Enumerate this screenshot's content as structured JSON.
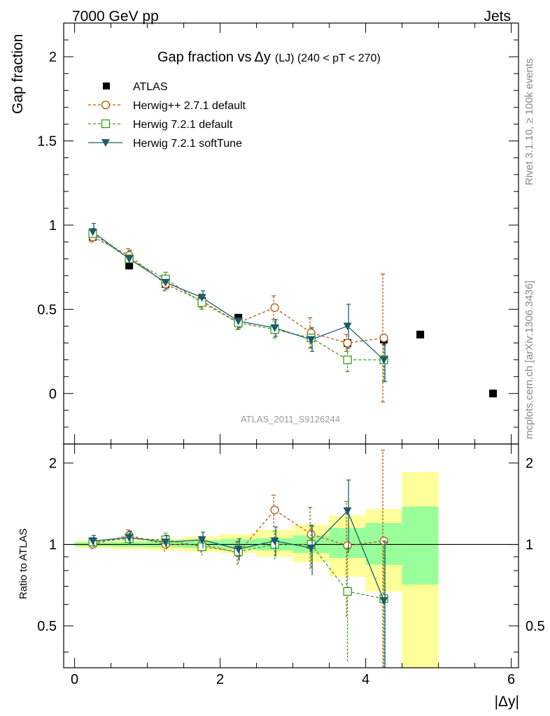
{
  "header": {
    "left": "7000 GeV pp",
    "right": "Jets"
  },
  "title": {
    "prefix": "Gap fraction vs",
    "delta_y": "Δy",
    "suffix": "(LJ) (240 < pT < 270)"
  },
  "side_labels": {
    "top": "Rivet 3.1.10, ≥ 100k events",
    "bottom": "mcplots.cern.ch [arXiv:1306.3436]"
  },
  "analysis_id": "ATLAS_2011_S9126244",
  "colors": {
    "atlas": "#000000",
    "herwigpp": "#b5580e",
    "herwig_default": "#3a9a1a",
    "herwig_soft": "#1c5b6e",
    "band_yellow": "#ffff99",
    "band_green": "#99ff99"
  },
  "chart_data": [
    {
      "type": "scatter",
      "panel": "main",
      "ylabel": "Gap fraction",
      "xlabel": "|Δy|",
      "xlim": [
        -0.15,
        6.1
      ],
      "ylim": [
        -0.3,
        2.2
      ],
      "yticks": [
        "0",
        "0.5",
        "1",
        "1.5",
        "2"
      ],
      "x": [
        0.25,
        0.75,
        1.25,
        1.75,
        2.25,
        2.75,
        3.25,
        3.75,
        4.25,
        4.75,
        5.75
      ],
      "series": [
        {
          "name": "ATLAS",
          "marker": "filled-square",
          "values": [
            0.93,
            0.76,
            0.65,
            0.55,
            0.45,
            0.38,
            0.33,
            0.3,
            0.32,
            0.35,
            0.0
          ],
          "errors": [
            0.02,
            0.02,
            0.02,
            0.02,
            0.02,
            0.02,
            0.02,
            0.02,
            0.03,
            0.02,
            0.0
          ]
        },
        {
          "name": "Herwig++ 2.7.1 default",
          "marker": "open-circle",
          "line": "dashed",
          "values": [
            0.93,
            0.82,
            0.65,
            0.55,
            0.42,
            0.51,
            0.36,
            0.3,
            0.33
          ],
          "errors": [
            0.03,
            0.04,
            0.04,
            0.04,
            0.04,
            0.07,
            0.09,
            0.05,
            0.38
          ]
        },
        {
          "name": "Herwig 7.2.1 default",
          "marker": "open-square",
          "line": "dashed",
          "values": [
            0.95,
            0.8,
            0.68,
            0.54,
            0.42,
            0.38,
            0.33,
            0.2,
            0.2
          ],
          "errors": [
            0.03,
            0.04,
            0.04,
            0.04,
            0.04,
            0.05,
            0.06,
            0.07,
            0.13
          ]
        },
        {
          "name": "Herwig 7.2.1 softTune",
          "marker": "filled-triangle-down",
          "line": "solid",
          "values": [
            0.96,
            0.8,
            0.66,
            0.57,
            0.43,
            0.39,
            0.32,
            0.4,
            0.2
          ],
          "errors": [
            0.05,
            0.05,
            0.04,
            0.04,
            0.04,
            0.05,
            0.07,
            0.13,
            0.13
          ]
        }
      ]
    },
    {
      "type": "line",
      "panel": "ratio",
      "ylabel": "Ratio to ATLAS",
      "xlabel": "|Δy|",
      "xlim": [
        -0.15,
        6.1
      ],
      "ylim": [
        0.35,
        2.35
      ],
      "ylog": true,
      "yticks": [
        "0.5",
        "1",
        "2"
      ],
      "xticks": [
        "0",
        "2",
        "4",
        "6"
      ],
      "bands": {
        "x_edges": [
          0,
          0.5,
          1,
          1.5,
          2,
          2.5,
          3,
          3.5,
          4,
          4.5,
          5
        ],
        "yellow": [
          [
            0.97,
            1.03
          ],
          [
            0.96,
            1.04
          ],
          [
            0.95,
            1.05
          ],
          [
            0.94,
            1.07
          ],
          [
            0.93,
            1.09
          ],
          [
            0.9,
            1.13
          ],
          [
            0.86,
            1.18
          ],
          [
            0.76,
            1.28
          ],
          [
            0.67,
            1.35
          ],
          [
            0.3,
            1.85
          ]
        ],
        "green": [
          [
            0.985,
            1.015
          ],
          [
            0.98,
            1.02
          ],
          [
            0.975,
            1.025
          ],
          [
            0.97,
            1.035
          ],
          [
            0.96,
            1.045
          ],
          [
            0.95,
            1.055
          ],
          [
            0.93,
            1.08
          ],
          [
            0.89,
            1.15
          ],
          [
            0.84,
            1.2
          ],
          [
            0.71,
            1.38
          ]
        ]
      },
      "x": [
        0.25,
        0.75,
        1.25,
        1.75,
        2.25,
        2.75,
        3.25,
        3.75,
        4.25
      ],
      "series": [
        {
          "name": "Herwig++ 2.7.1 default",
          "marker": "open-circle",
          "line": "dashed",
          "values": [
            1.0,
            1.08,
            1.0,
            1.0,
            0.93,
            1.34,
            1.09,
            0.99,
            1.03
          ],
          "errors": [
            0.04,
            0.05,
            0.06,
            0.07,
            0.09,
            0.18,
            0.28,
            0.45,
            1.2
          ]
        },
        {
          "name": "Herwig 7.2.1 default",
          "marker": "open-square",
          "line": "dashed",
          "values": [
            1.02,
            1.05,
            1.04,
            0.98,
            0.94,
            1.0,
            1.0,
            0.67,
            0.63
          ],
          "errors": [
            0.04,
            0.05,
            0.06,
            0.07,
            0.09,
            0.12,
            0.18,
            0.3,
            0.4
          ]
        },
        {
          "name": "Herwig 7.2.1 softTune",
          "marker": "filled-triangle-down",
          "line": "solid",
          "values": [
            1.03,
            1.06,
            1.02,
            1.04,
            0.96,
            1.03,
            0.97,
            1.33,
            0.62
          ],
          "errors": [
            0.05,
            0.06,
            0.06,
            0.07,
            0.09,
            0.13,
            0.2,
            0.4,
            0.4
          ]
        }
      ]
    }
  ]
}
